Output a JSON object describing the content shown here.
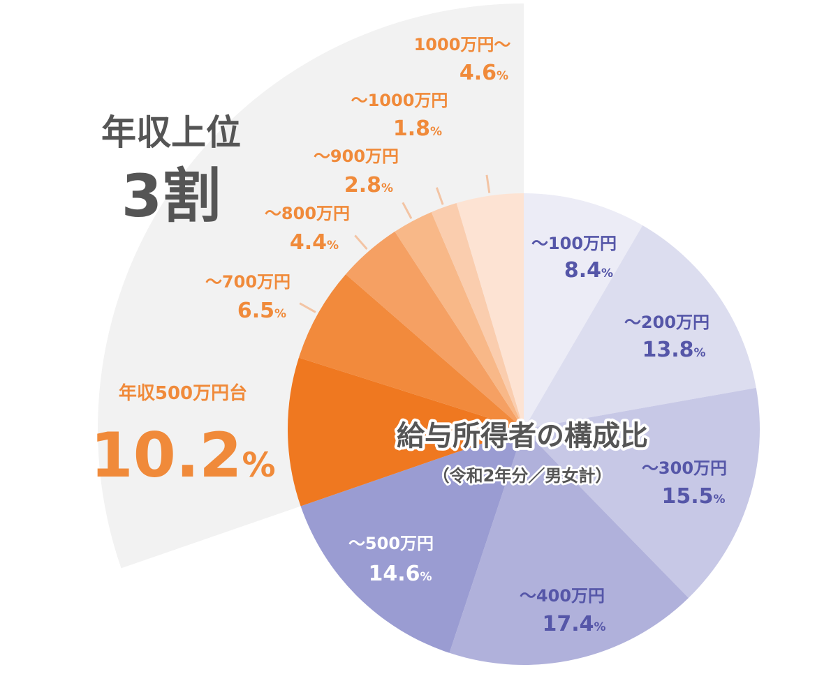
{
  "chart_data": {
    "type": "pie",
    "title": "給与所得者の構成比",
    "subtitle": "（令和2年分／男女計）",
    "unit": "%",
    "slices": [
      {
        "label": "～100万円",
        "value": 8.4,
        "value_text": "8.4",
        "color": "#ececf6",
        "text_color": "#5556a8"
      },
      {
        "label": "～200万円",
        "value": 13.8,
        "value_text": "13.8",
        "color": "#dcddef",
        "text_color": "#5556a8"
      },
      {
        "label": "～300万円",
        "value": 15.5,
        "value_text": "15.5",
        "color": "#c7c8e6",
        "text_color": "#5556a8"
      },
      {
        "label": "～400万円",
        "value": 17.4,
        "value_text": "17.4",
        "color": "#b0b1db",
        "text_color": "#5556a8"
      },
      {
        "label": "～500万円",
        "value": 14.6,
        "value_text": "14.6",
        "color": "#9a9cd2",
        "text_color": "#ffffff"
      },
      {
        "label": "年収500万円台",
        "value": 10.2,
        "value_text": "10.2",
        "color": "#ef7820",
        "text_color": "#f08a3a"
      },
      {
        "label": "～700万円",
        "value": 6.5,
        "value_text": "6.5",
        "color": "#f28a3c",
        "text_color": "#f08a3a"
      },
      {
        "label": "～800万円",
        "value": 4.4,
        "value_text": "4.4",
        "color": "#f5a063",
        "text_color": "#f08a3a"
      },
      {
        "label": "～900万円",
        "value": 2.8,
        "value_text": "2.8",
        "color": "#f8b888",
        "text_color": "#f08a3a"
      },
      {
        "label": "～1000万円",
        "value": 1.8,
        "value_text": "1.8",
        "color": "#facdae",
        "text_color": "#f08a3a"
      },
      {
        "label": "1000万円～",
        "value": 4.6,
        "value_text": "4.6",
        "color": "#fde3d3",
        "text_color": "#f08a3a"
      }
    ],
    "highlight": {
      "line1": "年収上位",
      "line2": "3割",
      "color": "#555555"
    },
    "background_sector_color": "#f2f2f2"
  }
}
